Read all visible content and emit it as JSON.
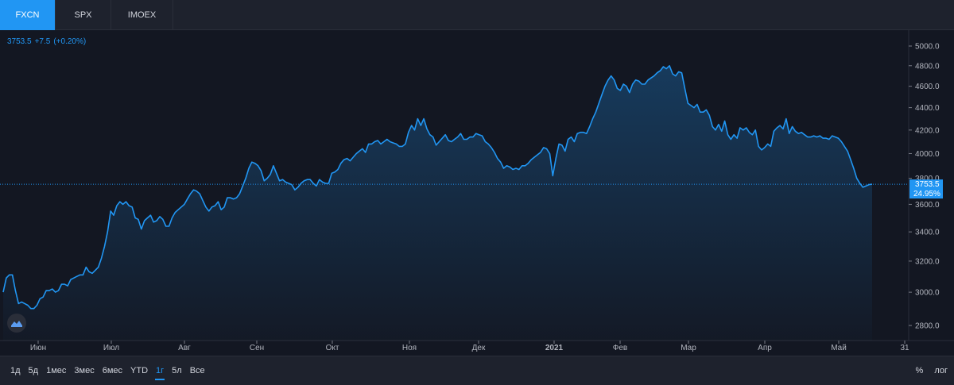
{
  "tabs": [
    {
      "label": "FXCN",
      "active": true
    },
    {
      "label": "SPX",
      "active": false
    },
    {
      "label": "IMOEX",
      "active": false
    }
  ],
  "quote": {
    "price": "3753.5",
    "change": "+7.5",
    "change_pct": "(+0.20%)"
  },
  "price_tag": {
    "price": "3753.5",
    "pct": "24.95%"
  },
  "ranges": [
    {
      "label": "1д",
      "active": false
    },
    {
      "label": "5д",
      "active": false
    },
    {
      "label": "1мес",
      "active": false
    },
    {
      "label": "3мес",
      "active": false
    },
    {
      "label": "6мес",
      "active": false
    },
    {
      "label": "YTD",
      "active": false
    },
    {
      "label": "1г",
      "active": true
    },
    {
      "label": "5л",
      "active": false
    },
    {
      "label": "Все",
      "active": false
    }
  ],
  "options": {
    "percent": "%",
    "log": "лог"
  },
  "colors": {
    "line": "#2196f3",
    "background": "#131722",
    "panel": "#1e222d",
    "text": "#d1d4dc",
    "grid": "#2a2e39"
  },
  "logo_icon": "cloud-logo-icon",
  "chart_data": {
    "type": "area",
    "series": [
      {
        "values": [
          3000,
          3090,
          3110,
          3110,
          3010,
          2930,
          2940,
          2930,
          2920,
          2900,
          2900,
          2920,
          2960,
          2970,
          3010,
          3010,
          3020,
          3000,
          3010,
          3050,
          3050,
          3040,
          3080,
          3090,
          3100,
          3110,
          3110,
          3160,
          3130,
          3120,
          3140,
          3160,
          3220,
          3300,
          3400,
          3550,
          3520,
          3590,
          3620,
          3600,
          3620,
          3590,
          3580,
          3500,
          3490,
          3420,
          3480,
          3500,
          3520,
          3470,
          3480,
          3510,
          3490,
          3440,
          3440,
          3500,
          3540,
          3560,
          3580,
          3600,
          3640,
          3680,
          3710,
          3700,
          3680,
          3630,
          3580,
          3550,
          3580,
          3590,
          3620,
          3560,
          3580,
          3650,
          3650,
          3640,
          3650,
          3680,
          3740,
          3800,
          3880,
          3930,
          3920,
          3900,
          3860,
          3780,
          3800,
          3830,
          3900,
          3840,
          3780,
          3790,
          3770,
          3760,
          3750,
          3710,
          3730,
          3760,
          3780,
          3790,
          3790,
          3760,
          3740,
          3790,
          3770,
          3760,
          3760,
          3840,
          3850,
          3870,
          3920,
          3950,
          3960,
          3940,
          3970,
          4000,
          4020,
          4040,
          4010,
          4080,
          4080,
          4100,
          4110,
          4080,
          4100,
          4120,
          4100,
          4090,
          4080,
          4060,
          4060,
          4080,
          4180,
          4240,
          4200,
          4300,
          4240,
          4300,
          4210,
          4160,
          4140,
          4070,
          4100,
          4130,
          4160,
          4110,
          4100,
          4120,
          4140,
          4170,
          4120,
          4120,
          4140,
          4140,
          4170,
          4160,
          4150,
          4100,
          4080,
          4050,
          4010,
          3960,
          3930,
          3880,
          3900,
          3890,
          3870,
          3880,
          3870,
          3900,
          3900,
          3920,
          3950,
          3970,
          3990,
          4010,
          4050,
          4040,
          4000,
          3820,
          3960,
          4080,
          4070,
          4020,
          4120,
          4140,
          4100,
          4170,
          4180,
          4180,
          4170,
          4230,
          4300,
          4360,
          4440,
          4520,
          4600,
          4660,
          4700,
          4660,
          4580,
          4560,
          4620,
          4600,
          4540,
          4620,
          4660,
          4650,
          4620,
          4620,
          4660,
          4680,
          4700,
          4730,
          4750,
          4790,
          4770,
          4800,
          4720,
          4700,
          4740,
          4730,
          4580,
          4440,
          4420,
          4400,
          4430,
          4360,
          4360,
          4380,
          4330,
          4230,
          4200,
          4250,
          4190,
          4280,
          4160,
          4120,
          4160,
          4130,
          4220,
          4200,
          4220,
          4180,
          4160,
          4200,
          4060,
          4030,
          4050,
          4080,
          4060,
          4190,
          4220,
          4240,
          4210,
          4300,
          4170,
          4230,
          4190,
          4170,
          4180,
          4160,
          4140,
          4140,
          4150,
          4140,
          4150,
          4130,
          4130,
          4120,
          4150,
          4140,
          4130,
          4100,
          4060,
          4020,
          3950,
          3880,
          3800,
          3760,
          3730,
          3740,
          3750,
          3753.5
        ]
      }
    ],
    "x_axis_labels": [
      "Июн",
      "Июл",
      "Авг",
      "Сен",
      "Окт",
      "Ноя",
      "Дек",
      "2021",
      "Фев",
      "Мар",
      "Апр",
      "Май",
      "31"
    ],
    "y_ticks": [
      2800,
      3000,
      3200,
      3400,
      3600,
      3800,
      4000,
      4200,
      4400,
      4600,
      4800,
      5000
    ],
    "ylim": [
      2700,
      5100
    ],
    "last_value": 3753.5,
    "scale": "log",
    "grid": false
  }
}
